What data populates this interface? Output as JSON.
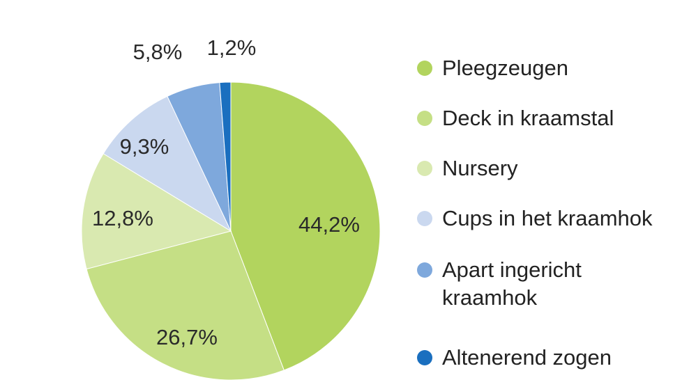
{
  "chart_data": {
    "type": "pie",
    "title": "",
    "slices": [
      {
        "label": "Pleegzeugen",
        "value": 44.2,
        "display": "44,2%",
        "color": "#b2d45e"
      },
      {
        "label": "Deck in kraamstal",
        "value": 26.7,
        "display": "26,7%",
        "color": "#c5df85"
      },
      {
        "label": "Nursery",
        "value": 12.8,
        "display": "12,8%",
        "color": "#d9e9b0"
      },
      {
        "label": "Cups in het kraamhok",
        "value": 9.3,
        "display": "9,3%",
        "color": "#cad8ef"
      },
      {
        "label": "Apart ingericht kraamhok",
        "value": 5.8,
        "display": "5,8%",
        "color": "#7ea8dc"
      },
      {
        "label": "Altenerend zogen",
        "value": 1.2,
        "display": "1,2%",
        "color": "#1a6fbf"
      }
    ],
    "legend_position": "right"
  }
}
